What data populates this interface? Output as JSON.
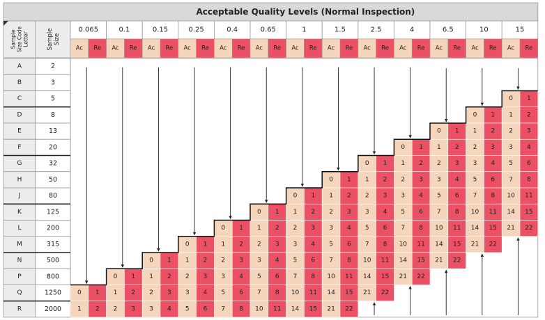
{
  "title": "Acceptable Quality Levels (Normal Inspection)",
  "header": {
    "code_label": [
      "Sample",
      "Size Code",
      "Letter"
    ],
    "size_label": [
      "Sample",
      "Size"
    ],
    "ac_label": "Ac",
    "re_label": "Re"
  },
  "aql_levels": [
    "0.065",
    "0.1",
    "0.15",
    "0.25",
    "0.4",
    "0.65",
    "1",
    "1.5",
    "2.5",
    "4",
    "6.5",
    "10",
    "15"
  ],
  "rows": [
    {
      "code": "A",
      "size": "2"
    },
    {
      "code": "B",
      "size": "3"
    },
    {
      "code": "C",
      "size": "5"
    },
    {
      "code": "D",
      "size": "8"
    },
    {
      "code": "E",
      "size": "13"
    },
    {
      "code": "F",
      "size": "20"
    },
    {
      "code": "G",
      "size": "32"
    },
    {
      "code": "H",
      "size": "50"
    },
    {
      "code": "J",
      "size": "80"
    },
    {
      "code": "K",
      "size": "125"
    },
    {
      "code": "L",
      "size": "200"
    },
    {
      "code": "M",
      "size": "315"
    },
    {
      "code": "N",
      "size": "500"
    },
    {
      "code": "P",
      "size": "800"
    },
    {
      "code": "Q",
      "size": "1250"
    },
    {
      "code": "R",
      "size": "2000"
    }
  ],
  "ac_re_series": [
    [
      "0",
      "1"
    ],
    [
      "1",
      "2"
    ],
    [
      "2",
      "3"
    ],
    [
      "3",
      "4"
    ],
    [
      "5",
      "6"
    ],
    [
      "7",
      "8"
    ],
    [
      "10",
      "11"
    ],
    [
      "14",
      "15"
    ],
    [
      "21",
      "22"
    ]
  ],
  "colors": {
    "title_bg": "#d9d9d9",
    "header_bg": "#ececec",
    "ac_fill": "#f5d5bb",
    "re_fill": "#ec5064",
    "grid": "#9a9a9a",
    "text": "#222222",
    "arrow": "#222222"
  }
}
